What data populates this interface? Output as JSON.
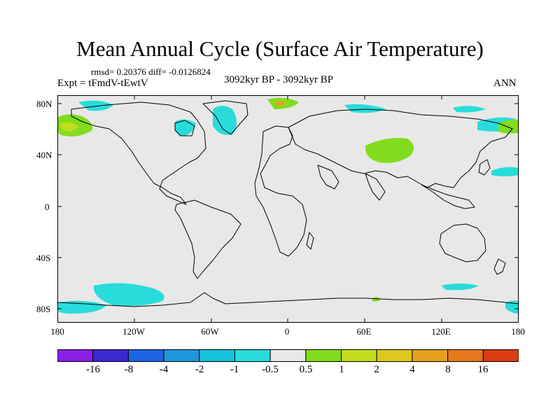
{
  "title": "Mean Annual Cycle (Surface Air Temperature)",
  "stats_line": "rmsd= 0.20376 diff= -0.0126824",
  "experiment": "Expt = tFmdV-tEwtV",
  "period": "3092kyr BP - 3092kyr BP",
  "season": "ANN",
  "map": {
    "background_color": "#e8e8e8",
    "lat_labels": [
      "80N",
      "40N",
      "0",
      "40S",
      "80S"
    ],
    "lon_labels": [
      "180",
      "120W",
      "60W",
      "0",
      "60E",
      "120E",
      "180"
    ]
  },
  "colorbar": {
    "colors": [
      "#8a1ee6",
      "#3c28d2",
      "#1e64e6",
      "#1e96dc",
      "#14c3dc",
      "#28dcdc",
      "#e8e8e8",
      "#82dc1e",
      "#c3dc1e",
      "#dcc81e",
      "#e6a01e",
      "#e6781e",
      "#dc3c14"
    ],
    "labels": [
      "-16",
      "-8",
      "-4",
      "-2",
      "-1",
      "-0.5",
      "0.5",
      "1",
      "2",
      "4",
      "8",
      "16"
    ]
  }
}
